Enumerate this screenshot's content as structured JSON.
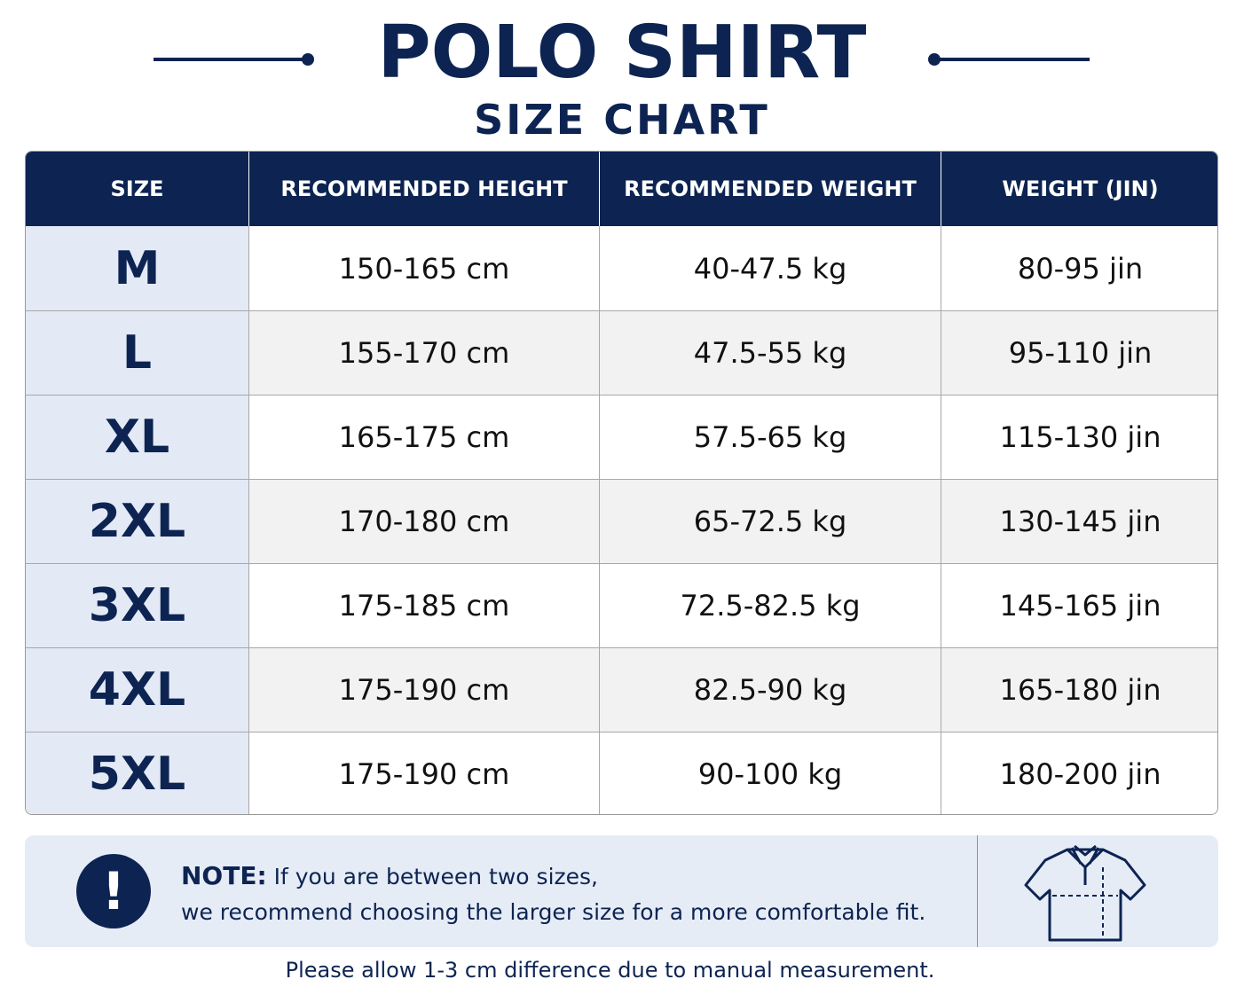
{
  "header": {
    "title": "POLO SHIRT",
    "subtitle": "SIZE CHART"
  },
  "table": {
    "columns": [
      "SIZE",
      "RECOMMENDED HEIGHT",
      "RECOMMENDED WEIGHT",
      "WEIGHT (JIN)"
    ],
    "rows": [
      [
        "M",
        "150-165 cm",
        "40-47.5 kg",
        "80-95 jin"
      ],
      [
        "L",
        "155-170 cm",
        "47.5-55 kg",
        "95-110 jin"
      ],
      [
        "XL",
        "165-175 cm",
        "57.5-65 kg",
        "115-130 jin"
      ],
      [
        "2XL",
        "170-180 cm",
        "65-72.5 kg",
        "130-145 jin"
      ],
      [
        "3XL",
        "175-185 cm",
        "72.5-82.5 kg",
        "145-165 jin"
      ],
      [
        "4XL",
        "175-190 cm",
        "82.5-90 kg",
        "165-180 jin"
      ],
      [
        "5XL",
        "175-190 cm",
        "90-100 kg",
        "180-200 jin"
      ]
    ]
  },
  "note": {
    "icon": "!",
    "label": "NOTE:",
    "lines": [
      "If you are between two sizes,",
      "we recommend choosing the larger size for a more comfortable fit."
    ]
  },
  "footer": "Please allow 1-3 cm difference due to manual measurement."
}
